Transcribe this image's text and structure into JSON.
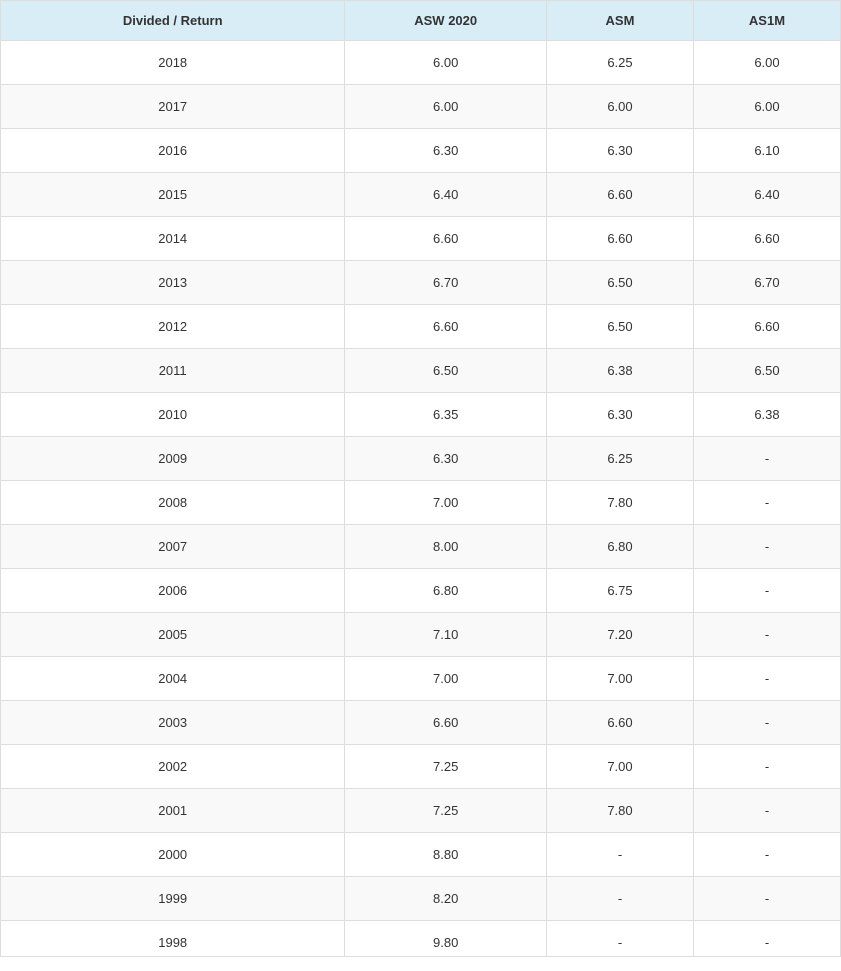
{
  "table": {
    "type": "table",
    "header_bg": "#d9edf7",
    "row_alt_bg": "#f9f9f9",
    "row_bg": "#ffffff",
    "border_color": "#dddddd",
    "text_color": "#333333",
    "font_family": "Verdana, Geneva, sans-serif",
    "header_fontsize": 13,
    "body_fontsize": 13,
    "columns": [
      {
        "label": "Divided / Return",
        "width": "41%"
      },
      {
        "label": "ASW 2020",
        "width": "24%"
      },
      {
        "label": "ASM",
        "width": "17.5%"
      },
      {
        "label": "AS1M",
        "width": "17.5%"
      }
    ],
    "rows": [
      [
        "2018",
        "6.00",
        "6.25",
        "6.00"
      ],
      [
        "2017",
        "6.00",
        "6.00",
        "6.00"
      ],
      [
        "2016",
        "6.30",
        "6.30",
        "6.10"
      ],
      [
        "2015",
        "6.40",
        "6.60",
        "6.40"
      ],
      [
        "2014",
        "6.60",
        "6.60",
        "6.60"
      ],
      [
        "2013",
        "6.70",
        "6.50",
        "6.70"
      ],
      [
        "2012",
        "6.60",
        "6.50",
        "6.60"
      ],
      [
        "2011",
        "6.50",
        "6.38",
        "6.50"
      ],
      [
        "2010",
        "6.35",
        "6.30",
        "6.38"
      ],
      [
        "2009",
        "6.30",
        "6.25",
        "-"
      ],
      [
        "2008",
        "7.00",
        "7.80",
        "-"
      ],
      [
        "2007",
        "8.00",
        "6.80",
        "-"
      ],
      [
        "2006",
        "6.80",
        "6.75",
        "-"
      ],
      [
        "2005",
        "7.10",
        "7.20",
        "-"
      ],
      [
        "2004",
        "7.00",
        "7.00",
        "-"
      ],
      [
        "2003",
        "6.60",
        "6.60",
        "-"
      ],
      [
        "2002",
        "7.25",
        "7.00",
        "-"
      ],
      [
        "2001",
        "7.25",
        "7.80",
        "-"
      ],
      [
        "2000",
        "8.80",
        "-",
        "-"
      ],
      [
        "1999",
        "8.20",
        "-",
        "-"
      ],
      [
        "1998",
        "9.80",
        "-",
        "-"
      ]
    ]
  }
}
